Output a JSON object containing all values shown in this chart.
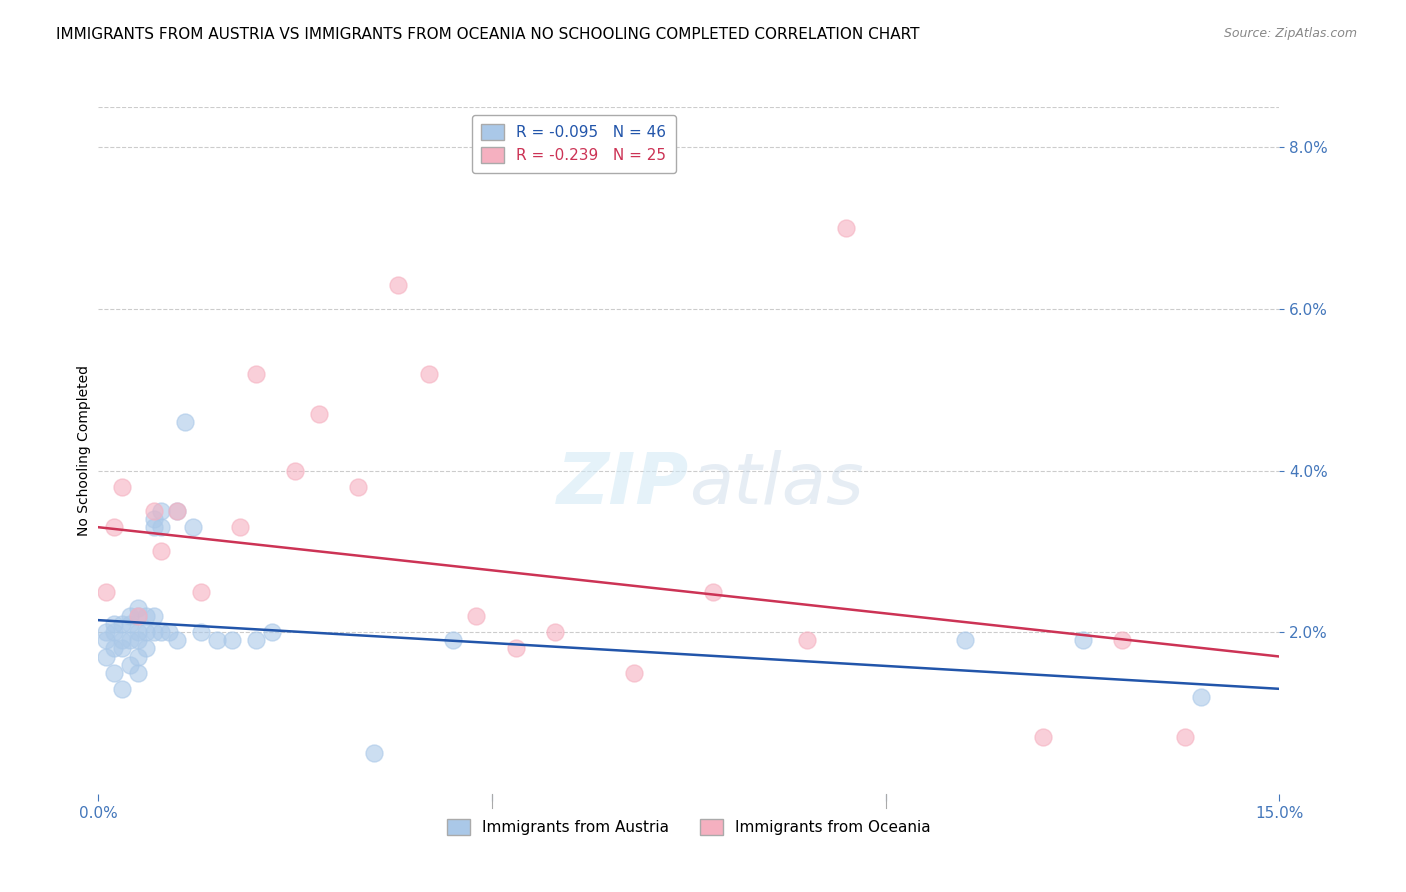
{
  "title": "IMMIGRANTS FROM AUSTRIA VS IMMIGRANTS FROM OCEANIA NO SCHOOLING COMPLETED CORRELATION CHART",
  "source": "Source: ZipAtlas.com",
  "ylabel": "No Schooling Completed",
  "xlim": [
    0,
    0.15
  ],
  "ylim": [
    0,
    0.085
  ],
  "xtick_positions": [
    0.0,
    0.05,
    0.1,
    0.15
  ],
  "xtick_labels": [
    "0.0%",
    "",
    "",
    "15.0%"
  ],
  "yticks_right": [
    0.02,
    0.04,
    0.06,
    0.08
  ],
  "austria_color": "#aac8e8",
  "oceania_color": "#f5b0c0",
  "austria_line_color": "#2255aa",
  "oceania_line_color": "#cc3355",
  "austria_R": -0.095,
  "austria_N": 46,
  "oceania_R": -0.239,
  "oceania_N": 25,
  "austria_trend_x0": 0.0,
  "austria_trend_y0": 0.0215,
  "austria_trend_x1": 0.15,
  "austria_trend_y1": 0.013,
  "oceania_trend_x0": 0.0,
  "oceania_trend_y0": 0.033,
  "oceania_trend_x1": 0.15,
  "oceania_trend_y1": 0.017,
  "austria_scatter_x": [
    0.001,
    0.001,
    0.001,
    0.002,
    0.002,
    0.002,
    0.002,
    0.003,
    0.003,
    0.003,
    0.003,
    0.004,
    0.004,
    0.004,
    0.004,
    0.005,
    0.005,
    0.005,
    0.005,
    0.005,
    0.005,
    0.006,
    0.006,
    0.006,
    0.007,
    0.007,
    0.007,
    0.007,
    0.008,
    0.008,
    0.008,
    0.009,
    0.01,
    0.01,
    0.011,
    0.012,
    0.013,
    0.015,
    0.017,
    0.02,
    0.022,
    0.035,
    0.045,
    0.11,
    0.125,
    0.14
  ],
  "austria_scatter_y": [
    0.02,
    0.019,
    0.017,
    0.021,
    0.02,
    0.018,
    0.015,
    0.021,
    0.019,
    0.018,
    0.013,
    0.022,
    0.021,
    0.019,
    0.016,
    0.023,
    0.022,
    0.02,
    0.019,
    0.017,
    0.015,
    0.022,
    0.02,
    0.018,
    0.034,
    0.033,
    0.022,
    0.02,
    0.035,
    0.033,
    0.02,
    0.02,
    0.035,
    0.019,
    0.046,
    0.033,
    0.02,
    0.019,
    0.019,
    0.019,
    0.02,
    0.005,
    0.019,
    0.019,
    0.019,
    0.012
  ],
  "oceania_scatter_x": [
    0.001,
    0.002,
    0.003,
    0.005,
    0.007,
    0.008,
    0.01,
    0.013,
    0.018,
    0.02,
    0.025,
    0.028,
    0.033,
    0.038,
    0.042,
    0.048,
    0.053,
    0.058,
    0.068,
    0.078,
    0.09,
    0.095,
    0.12,
    0.13,
    0.138
  ],
  "oceania_scatter_y": [
    0.025,
    0.033,
    0.038,
    0.022,
    0.035,
    0.03,
    0.035,
    0.025,
    0.033,
    0.052,
    0.04,
    0.047,
    0.038,
    0.063,
    0.052,
    0.022,
    0.018,
    0.02,
    0.015,
    0.025,
    0.019,
    0.07,
    0.007,
    0.019,
    0.007
  ],
  "background_color": "#ffffff",
  "grid_color": "#cccccc",
  "tick_color": "#4477bb",
  "title_fontsize": 11,
  "axis_label_fontsize": 10,
  "tick_fontsize": 11,
  "legend_fontsize": 11
}
